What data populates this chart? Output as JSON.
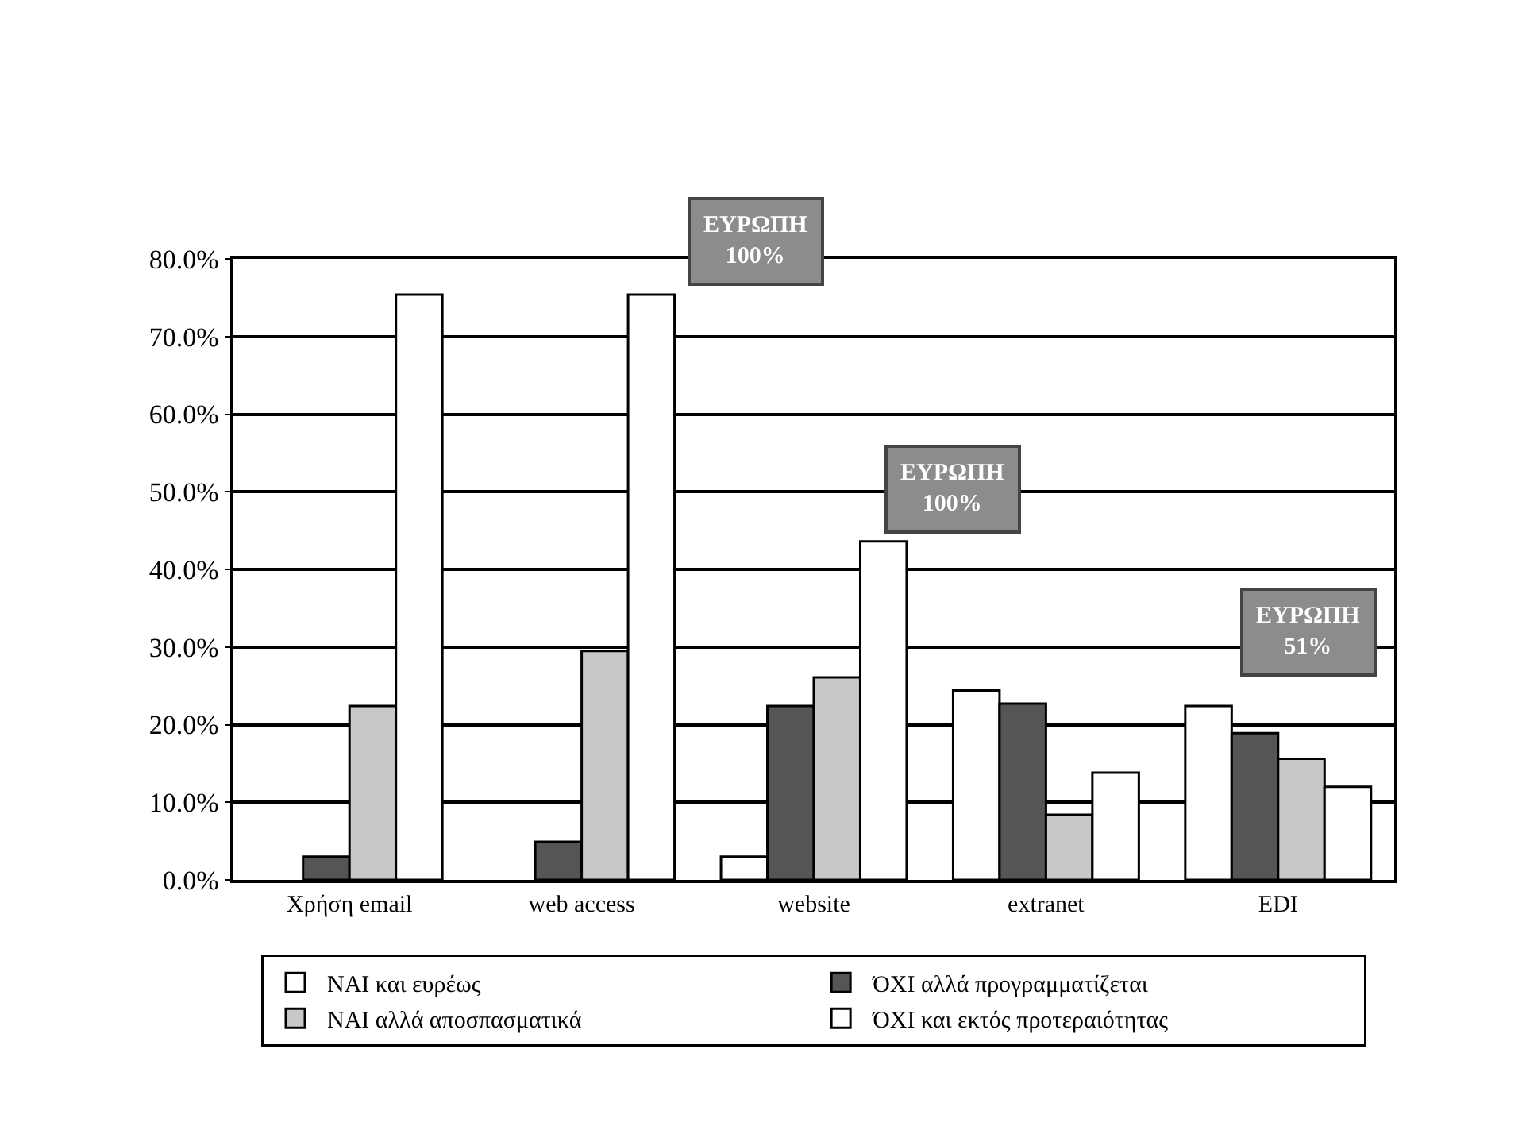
{
  "chart_data": {
    "type": "bar",
    "categories": [
      "Χρήση email",
      "web access",
      "website",
      "extranet",
      "EDI"
    ],
    "series": [
      {
        "name": "NAI και ευρέως",
        "color": "#ffffff",
        "values": [
          null,
          null,
          3.0,
          24.4,
          22.4
        ]
      },
      {
        "name": "ΌΧΙ αλλά προγραμματίζεται",
        "color": "#555555",
        "values": [
          3.0,
          4.9,
          22.4,
          22.7,
          18.9
        ]
      },
      {
        "name": "NAI αλλά αποσπασματικά",
        "color": "#c8c8c8",
        "values": [
          22.4,
          29.5,
          26.1,
          8.4,
          15.6
        ]
      },
      {
        "name": "ΌΧΙ και εκτός προτεραιότητας",
        "color": "#ffffff",
        "values": [
          75.4,
          75.4,
          43.6,
          13.8,
          12.0
        ]
      }
    ],
    "ylim": [
      0,
      80
    ],
    "yticks": [
      {
        "value": 0,
        "label": "0.0%"
      },
      {
        "value": 10,
        "label": "10.0%"
      },
      {
        "value": 20,
        "label": "20.0%"
      },
      {
        "value": 30,
        "label": "30.0%"
      },
      {
        "value": 40,
        "label": "40.0%"
      },
      {
        "value": 50,
        "label": "50.0%"
      },
      {
        "value": 60,
        "label": "60.0%"
      },
      {
        "value": 70,
        "label": "70.0%"
      },
      {
        "value": 80,
        "label": "80.0%"
      }
    ],
    "grid": "y",
    "legend": "bottom",
    "annotations": [
      "ΕΥΡΩΠΗ\n100%",
      "ΕΥΡΩΠΗ\n100%",
      "ΕΥΡΩΠΗ\n51%"
    ]
  }
}
